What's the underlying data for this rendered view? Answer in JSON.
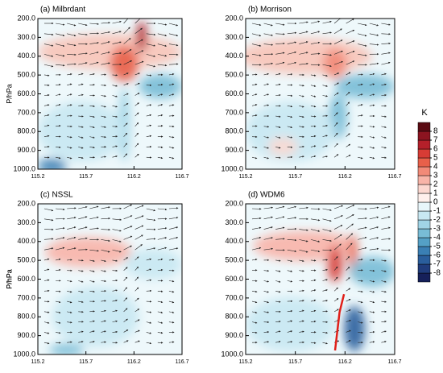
{
  "chart_data": [
    {
      "type": "contour",
      "title": "(a) Milbrdant",
      "ylabel": "P/hPa",
      "xlim": [
        115.2,
        116.7
      ],
      "xticks": [
        115.2,
        115.7,
        116.2,
        116.7
      ],
      "ylim": [
        1000,
        200
      ],
      "yticks": [
        {
          "value": 200,
          "label": "200.0"
        },
        {
          "value": 300,
          "label": "300.0"
        },
        {
          "value": 400,
          "label": "400.0"
        },
        {
          "value": 500,
          "label": "500.0"
        },
        {
          "value": 600,
          "label": "600.0"
        },
        {
          "value": 700,
          "label": "700.0"
        },
        {
          "value": 800,
          "label": "800.0"
        },
        {
          "value": 900,
          "label": "900.0"
        },
        {
          "value": 1000,
          "label": "1000.0"
        }
      ]
    },
    {
      "type": "contour",
      "title": "(b) Morrison",
      "xlim": [
        115.2,
        116.7
      ],
      "xticks": [
        115.2,
        115.7,
        116.2,
        116.7
      ],
      "ylim": [
        1000,
        200
      ],
      "yticks": [
        {
          "value": 200,
          "label": "200.0"
        },
        {
          "value": 300,
          "label": "300.0"
        },
        {
          "value": 400,
          "label": "400.0"
        },
        {
          "value": 500,
          "label": "500.0"
        },
        {
          "value": 600,
          "label": "600.0"
        },
        {
          "value": 700,
          "label": "700.0"
        },
        {
          "value": 800,
          "label": "800.0"
        },
        {
          "value": 900,
          "label": "900.0"
        },
        {
          "value": 1000,
          "label": "1000.0"
        }
      ]
    },
    {
      "type": "contour",
      "title": "(c) NSSL",
      "ylabel": "P/hPa",
      "xlim": [
        115.2,
        116.7
      ],
      "xticks": [
        115.2,
        115.7,
        116.2,
        116.7
      ],
      "ylim": [
        1000,
        200
      ],
      "yticks": [
        {
          "value": 200,
          "label": "200.0"
        },
        {
          "value": 300,
          "label": "300.0"
        },
        {
          "value": 400,
          "label": "400.0"
        },
        {
          "value": 500,
          "label": "500.0"
        },
        {
          "value": 600,
          "label": "600.0"
        },
        {
          "value": 700,
          "label": "700.0"
        },
        {
          "value": 800,
          "label": "800.0"
        },
        {
          "value": 900,
          "label": "900.0"
        },
        {
          "value": 1000,
          "label": "1000.0"
        }
      ]
    },
    {
      "type": "contour",
      "title": "(d) WDM6",
      "ylabel": "P/hPa",
      "xlim": [
        115.2,
        116.7
      ],
      "xticks": [
        115.2,
        115.7,
        116.2,
        116.7
      ],
      "ylim": [
        1000,
        200
      ],
      "yticks": [
        {
          "value": 200,
          "label": "200.0"
        },
        {
          "value": 300,
          "label": "300.0"
        },
        {
          "value": 400,
          "label": "400.0"
        },
        {
          "value": 500,
          "label": "500.0"
        },
        {
          "value": 600,
          "label": "600.0"
        },
        {
          "value": 700,
          "label": "700.0"
        },
        {
          "value": 800,
          "label": "800.0"
        },
        {
          "value": 900,
          "label": "900.0"
        },
        {
          "value": 1000,
          "label": "1000.0"
        }
      ]
    }
  ],
  "colorbar": {
    "label": "K",
    "levels": [
      -8,
      -7,
      -6,
      -5,
      -4,
      -3,
      -2,
      -1,
      0,
      1,
      2,
      3,
      4,
      5,
      6,
      7,
      8
    ],
    "colors": [
      "#16205a",
      "#203c7c",
      "#2a5e9c",
      "#3a7fb4",
      "#54a0c6",
      "#78bcd6",
      "#a0d4e6",
      "#c8e8f2",
      "#e8f6fa",
      "#fff0ec",
      "#fcd8d0",
      "#f8b4a8",
      "#f28a78",
      "#e8604a",
      "#d73c35",
      "#b4202a",
      "#8c1420",
      "#5a0a12"
    ]
  }
}
